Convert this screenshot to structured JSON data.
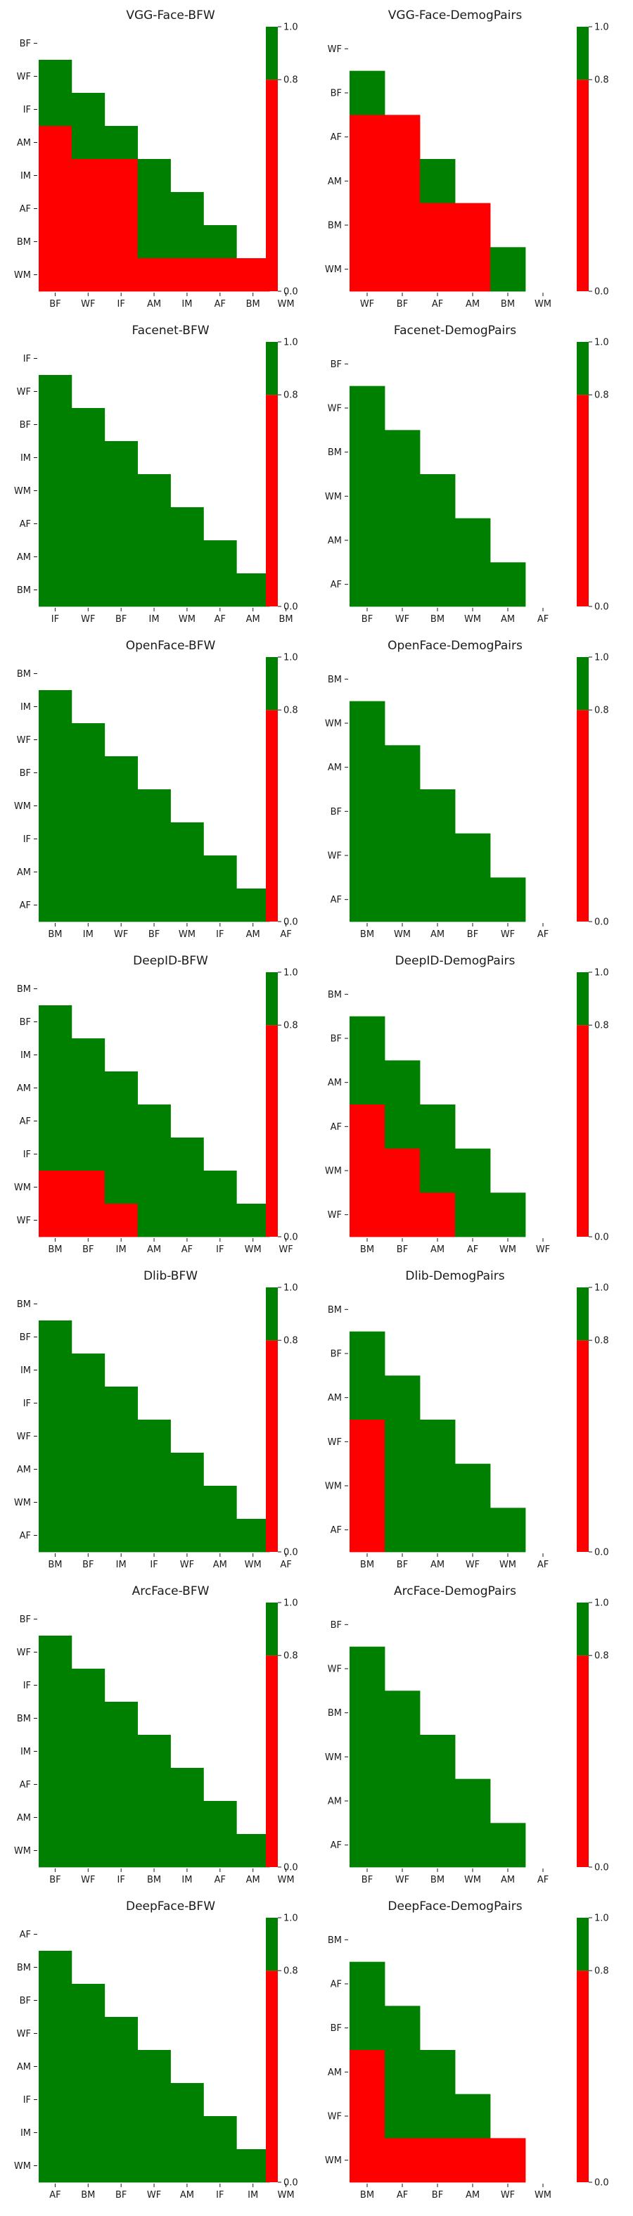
{
  "colors": {
    "pass": "#008000",
    "fail": "#ff0000"
  },
  "colorbar": {
    "ticks": [
      "0.0",
      "0.8",
      "1.0"
    ],
    "values": [
      0.0,
      0.8,
      1.0
    ]
  },
  "chart_data": [
    {
      "type": "heatmap",
      "title": "VGG-Face-BFW",
      "xlabels": [
        "BF",
        "WF",
        "IF",
        "AM",
        "IM",
        "AF",
        "BM",
        "WM"
      ],
      "ylabels": [
        "BF",
        "WF",
        "IF",
        "AM",
        "IM",
        "AF",
        "BM",
        "WM"
      ],
      "matrix": [
        [],
        [
          1
        ],
        [
          1,
          1
        ],
        [
          0,
          1,
          1
        ],
        [
          0,
          0,
          0,
          1
        ],
        [
          0,
          0,
          0,
          1,
          1
        ],
        [
          0,
          0,
          0,
          1,
          1,
          1
        ],
        [
          0,
          0,
          0,
          0,
          0,
          0,
          0
        ]
      ]
    },
    {
      "type": "heatmap",
      "title": "VGG-Face-DemogPairs",
      "xlabels": [
        "WF",
        "BF",
        "AF",
        "AM",
        "BM",
        "WM"
      ],
      "ylabels": [
        "WF",
        "BF",
        "AF",
        "AM",
        "BM",
        "WM"
      ],
      "matrix": [
        [],
        [
          1
        ],
        [
          0,
          0
        ],
        [
          0,
          0,
          1
        ],
        [
          0,
          0,
          0,
          0
        ],
        [
          0,
          0,
          0,
          0,
          1
        ]
      ]
    },
    {
      "type": "heatmap",
      "title": "Facenet-BFW",
      "xlabels": [
        "IF",
        "WF",
        "BF",
        "IM",
        "WM",
        "AF",
        "AM",
        "BM"
      ],
      "ylabels": [
        "IF",
        "WF",
        "BF",
        "IM",
        "WM",
        "AF",
        "AM",
        "BM"
      ],
      "matrix": [
        [],
        [
          1
        ],
        [
          1,
          1
        ],
        [
          1,
          1,
          1
        ],
        [
          1,
          1,
          1,
          1
        ],
        [
          1,
          1,
          1,
          1,
          1
        ],
        [
          1,
          1,
          1,
          1,
          1,
          1
        ],
        [
          1,
          1,
          1,
          1,
          1,
          1,
          1
        ]
      ]
    },
    {
      "type": "heatmap",
      "title": "Facenet-DemogPairs",
      "xlabels": [
        "BF",
        "WF",
        "BM",
        "WM",
        "AM",
        "AF"
      ],
      "ylabels": [
        "BF",
        "WF",
        "BM",
        "WM",
        "AM",
        "AF"
      ],
      "matrix": [
        [],
        [
          1
        ],
        [
          1,
          1
        ],
        [
          1,
          1,
          1
        ],
        [
          1,
          1,
          1,
          1
        ],
        [
          1,
          1,
          1,
          1,
          1
        ]
      ]
    },
    {
      "type": "heatmap",
      "title": "OpenFace-BFW",
      "xlabels": [
        "BM",
        "IM",
        "WF",
        "BF",
        "WM",
        "IF",
        "AM",
        "AF"
      ],
      "ylabels": [
        "BM",
        "IM",
        "WF",
        "BF",
        "WM",
        "IF",
        "AM",
        "AF"
      ],
      "matrix": [
        [],
        [
          1
        ],
        [
          1,
          1
        ],
        [
          1,
          1,
          1
        ],
        [
          1,
          1,
          1,
          1
        ],
        [
          1,
          1,
          1,
          1,
          1
        ],
        [
          1,
          1,
          1,
          1,
          1,
          1
        ],
        [
          1,
          1,
          1,
          1,
          1,
          1,
          1
        ]
      ]
    },
    {
      "type": "heatmap",
      "title": "OpenFace-DemogPairs",
      "xlabels": [
        "BM",
        "WM",
        "AM",
        "BF",
        "WF",
        "AF"
      ],
      "ylabels": [
        "BM",
        "WM",
        "AM",
        "BF",
        "WF",
        "AF"
      ],
      "matrix": [
        [],
        [
          1
        ],
        [
          1,
          1
        ],
        [
          1,
          1,
          1
        ],
        [
          1,
          1,
          1,
          1
        ],
        [
          1,
          1,
          1,
          1,
          1
        ]
      ]
    },
    {
      "type": "heatmap",
      "title": "DeepID-BFW",
      "xlabels": [
        "BM",
        "BF",
        "IM",
        "AM",
        "AF",
        "IF",
        "WM",
        "WF"
      ],
      "ylabels": [
        "BM",
        "BF",
        "IM",
        "AM",
        "AF",
        "IF",
        "WM",
        "WF"
      ],
      "matrix": [
        [],
        [
          1
        ],
        [
          1,
          1
        ],
        [
          1,
          1,
          1
        ],
        [
          1,
          1,
          1,
          1
        ],
        [
          1,
          1,
          1,
          1,
          1
        ],
        [
          0,
          0,
          1,
          1,
          1,
          1
        ],
        [
          0,
          0,
          0,
          1,
          1,
          1,
          1
        ]
      ]
    },
    {
      "type": "heatmap",
      "title": "DeepID-DemogPairs",
      "xlabels": [
        "BM",
        "BF",
        "AM",
        "AF",
        "WM",
        "WF"
      ],
      "ylabels": [
        "BM",
        "BF",
        "AM",
        "AF",
        "WM",
        "WF"
      ],
      "matrix": [
        [],
        [
          1
        ],
        [
          1,
          1
        ],
        [
          0,
          1,
          1
        ],
        [
          0,
          0,
          1,
          1
        ],
        [
          0,
          0,
          0,
          1,
          1
        ]
      ]
    },
    {
      "type": "heatmap",
      "title": "Dlib-BFW",
      "xlabels": [
        "BM",
        "BF",
        "IM",
        "IF",
        "WF",
        "AM",
        "WM",
        "AF"
      ],
      "ylabels": [
        "BM",
        "BF",
        "IM",
        "IF",
        "WF",
        "AM",
        "WM",
        "AF"
      ],
      "matrix": [
        [],
        [
          1
        ],
        [
          1,
          1
        ],
        [
          1,
          1,
          1
        ],
        [
          1,
          1,
          1,
          1
        ],
        [
          1,
          1,
          1,
          1,
          1
        ],
        [
          1,
          1,
          1,
          1,
          1,
          1
        ],
        [
          1,
          1,
          1,
          1,
          1,
          1,
          1
        ]
      ]
    },
    {
      "type": "heatmap",
      "title": "Dlib-DemogPairs",
      "xlabels": [
        "BM",
        "BF",
        "AM",
        "WF",
        "WM",
        "AF"
      ],
      "ylabels": [
        "BM",
        "BF",
        "AM",
        "WF",
        "WM",
        "AF"
      ],
      "matrix": [
        [],
        [
          1
        ],
        [
          1,
          1
        ],
        [
          0,
          1,
          1
        ],
        [
          0,
          1,
          1,
          1
        ],
        [
          0,
          1,
          1,
          1,
          1
        ]
      ]
    },
    {
      "type": "heatmap",
      "title": "ArcFace-BFW",
      "xlabels": [
        "BF",
        "WF",
        "IF",
        "BM",
        "IM",
        "AF",
        "AM",
        "WM"
      ],
      "ylabels": [
        "BF",
        "WF",
        "IF",
        "BM",
        "IM",
        "AF",
        "AM",
        "WM"
      ],
      "matrix": [
        [],
        [
          1
        ],
        [
          1,
          1
        ],
        [
          1,
          1,
          1
        ],
        [
          1,
          1,
          1,
          1
        ],
        [
          1,
          1,
          1,
          1,
          1
        ],
        [
          1,
          1,
          1,
          1,
          1,
          1
        ],
        [
          1,
          1,
          1,
          1,
          1,
          1,
          1
        ]
      ]
    },
    {
      "type": "heatmap",
      "title": "ArcFace-DemogPairs",
      "xlabels": [
        "BF",
        "WF",
        "BM",
        "WM",
        "AM",
        "AF"
      ],
      "ylabels": [
        "BF",
        "WF",
        "BM",
        "WM",
        "AM",
        "AF"
      ],
      "matrix": [
        [],
        [
          1
        ],
        [
          1,
          1
        ],
        [
          1,
          1,
          1
        ],
        [
          1,
          1,
          1,
          1
        ],
        [
          1,
          1,
          1,
          1,
          1
        ]
      ]
    },
    {
      "type": "heatmap",
      "title": "DeepFace-BFW",
      "xlabels": [
        "AF",
        "BM",
        "BF",
        "WF",
        "AM",
        "IF",
        "IM",
        "WM"
      ],
      "ylabels": [
        "AF",
        "BM",
        "BF",
        "WF",
        "AM",
        "IF",
        "IM",
        "WM"
      ],
      "matrix": [
        [],
        [
          1
        ],
        [
          1,
          1
        ],
        [
          1,
          1,
          1
        ],
        [
          1,
          1,
          1,
          1
        ],
        [
          1,
          1,
          1,
          1,
          1
        ],
        [
          1,
          1,
          1,
          1,
          1,
          1
        ],
        [
          1,
          1,
          1,
          1,
          1,
          1,
          1
        ]
      ]
    },
    {
      "type": "heatmap",
      "title": "DeepFace-DemogPairs",
      "xlabels": [
        "BM",
        "AF",
        "BF",
        "AM",
        "WF",
        "WM"
      ],
      "ylabels": [
        "BM",
        "AF",
        "BF",
        "AM",
        "WF",
        "WM"
      ],
      "matrix": [
        [],
        [
          1
        ],
        [
          1,
          1
        ],
        [
          0,
          1,
          1
        ],
        [
          0,
          1,
          1,
          1
        ],
        [
          0,
          0,
          0,
          0,
          0
        ]
      ]
    }
  ]
}
